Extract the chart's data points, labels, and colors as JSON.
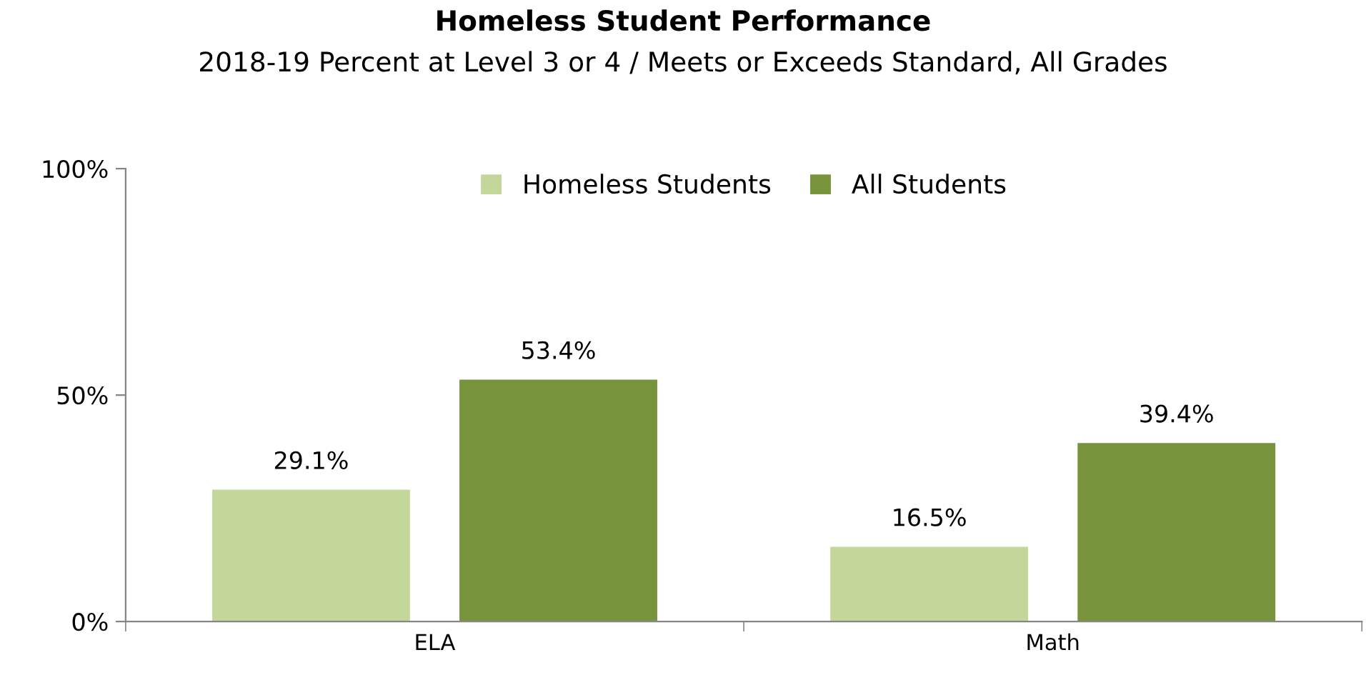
{
  "chart_data": {
    "type": "bar",
    "title": "Homeless Student Performance",
    "subtitle": "2018-19 Percent at Level 3 or 4 / Meets or Exceeds Standard, All Grades",
    "categories": [
      "ELA",
      "Math"
    ],
    "series": [
      {
        "name": "Homeless Students",
        "color": "#c4d79b",
        "values": [
          29.1,
          16.5
        ],
        "value_labels": [
          "29.1%",
          "16.5%"
        ]
      },
      {
        "name": "All Students",
        "color": "#77933c",
        "values": [
          53.4,
          39.4
        ],
        "value_labels": [
          "53.4%",
          "39.4%"
        ]
      }
    ],
    "ylim": [
      0,
      100
    ],
    "yticks": [
      {
        "value": 0,
        "label": "0%"
      },
      {
        "value": 50,
        "label": "50%"
      },
      {
        "value": 100,
        "label": "100%"
      }
    ],
    "grid": false,
    "legend": "top"
  }
}
